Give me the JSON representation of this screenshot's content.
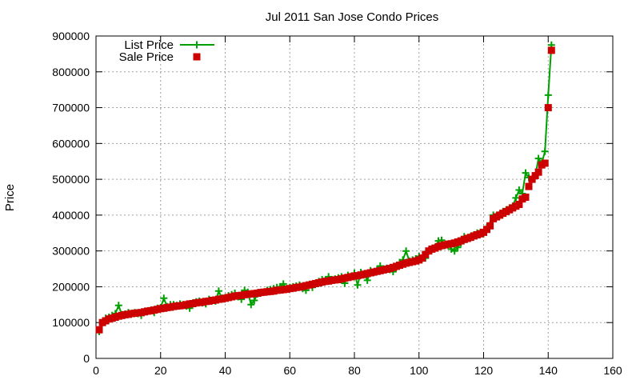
{
  "chart_data": {
    "type": "line",
    "title": "Jul 2011 San Jose Condo Prices",
    "xlabel": "",
    "ylabel": "Price",
    "xlim": [
      0,
      160
    ],
    "ylim": [
      0,
      900000
    ],
    "x_ticks": [
      0,
      20,
      40,
      60,
      80,
      100,
      120,
      140,
      160
    ],
    "y_ticks": [
      0,
      100000,
      200000,
      300000,
      400000,
      500000,
      600000,
      700000,
      800000,
      900000
    ],
    "grid": true,
    "legend_position": "top-left",
    "x": [
      1,
      2,
      3,
      4,
      5,
      6,
      7,
      8,
      9,
      10,
      11,
      12,
      13,
      14,
      15,
      16,
      17,
      18,
      19,
      20,
      21,
      22,
      23,
      24,
      25,
      26,
      27,
      28,
      29,
      30,
      31,
      32,
      33,
      34,
      35,
      36,
      37,
      38,
      39,
      40,
      41,
      42,
      43,
      44,
      45,
      46,
      47,
      48,
      49,
      50,
      51,
      52,
      53,
      54,
      55,
      56,
      57,
      58,
      59,
      60,
      61,
      62,
      63,
      64,
      65,
      66,
      67,
      68,
      69,
      70,
      71,
      72,
      73,
      74,
      75,
      76,
      77,
      78,
      79,
      80,
      81,
      82,
      83,
      84,
      85,
      86,
      87,
      88,
      89,
      90,
      91,
      92,
      93,
      94,
      95,
      96,
      97,
      98,
      99,
      100,
      101,
      102,
      103,
      104,
      105,
      106,
      107,
      108,
      109,
      110,
      111,
      112,
      113,
      114,
      115,
      116,
      117,
      118,
      119,
      120,
      121,
      122,
      123,
      124,
      125,
      126,
      127,
      128,
      129,
      130,
      131,
      132,
      133,
      134,
      135,
      136,
      137,
      138,
      139,
      140,
      141
    ],
    "series": [
      {
        "name": "List Price",
        "color": "#00a000",
        "marker": "plus",
        "values": [
          75000,
          100000,
          112000,
          115000,
          120000,
          125000,
          148000,
          122000,
          124000,
          128000,
          125000,
          128000,
          125000,
          120000,
          130000,
          132000,
          135000,
          128000,
          140000,
          142000,
          168000,
          145000,
          150000,
          150000,
          148000,
          152000,
          150000,
          146000,
          140000,
          155000,
          158000,
          160000,
          155000,
          152000,
          165000,
          162000,
          160000,
          188000,
          168000,
          170000,
          175000,
          178000,
          182000,
          172000,
          165000,
          190000,
          185000,
          150000,
          162000,
          180000,
          182000,
          185000,
          190000,
          192000,
          195000,
          198000,
          200000,
          208000,
          195000,
          198000,
          200000,
          202000,
          205000,
          195000,
          190000,
          205000,
          198000,
          210000,
          215000,
          220000,
          218000,
          228000,
          220000,
          222000,
          225000,
          228000,
          210000,
          232000,
          228000,
          238000,
          205000,
          240000,
          235000,
          218000,
          245000,
          240000,
          248000,
          258000,
          250000,
          252000,
          248000,
          242000,
          255000,
          268000,
          275000,
          300000,
          272000,
          275000,
          278000,
          285000,
          280000,
          280000,
          300000,
          305000,
          310000,
          328000,
          330000,
          315000,
          318000,
          305000,
          300000,
          310000,
          322000,
          340000,
          335000,
          340000,
          345000,
          350000,
          352000,
          348000,
          365000,
          375000,
          400000,
          398000,
          402000,
          410000,
          415000,
          420000,
          425000,
          448000,
          470000,
          460000,
          518000,
          505000,
          500000,
          510000,
          558000,
          545000,
          578000,
          735000,
          875000
        ]
      },
      {
        "name": "Sale Price",
        "color": "#cc0000",
        "marker": "square",
        "values": [
          80000,
          100000,
          105000,
          110000,
          112000,
          115000,
          118000,
          120000,
          122000,
          123000,
          125000,
          126000,
          127000,
          128000,
          130000,
          132000,
          133000,
          135000,
          137000,
          139000,
          140000,
          142000,
          143000,
          145000,
          146000,
          147000,
          148000,
          150000,
          152000,
          153000,
          155000,
          156000,
          157000,
          159000,
          160000,
          162000,
          163000,
          165000,
          166000,
          168000,
          170000,
          172000,
          174000,
          175000,
          176000,
          178000,
          179000,
          180000,
          181000,
          182000,
          184000,
          185000,
          186000,
          187000,
          188000,
          190000,
          191000,
          192000,
          193000,
          195000,
          196000,
          198000,
          199000,
          201000,
          203000,
          205000,
          207000,
          209000,
          211000,
          213000,
          215000,
          216000,
          218000,
          219000,
          220000,
          222000,
          224000,
          226000,
          228000,
          230000,
          231000,
          233000,
          235000,
          237000,
          239000,
          241000,
          243000,
          245000,
          247000,
          249000,
          251000,
          254000,
          257000,
          260000,
          263000,
          266000,
          268000,
          270000,
          272000,
          275000,
          280000,
          290000,
          300000,
          305000,
          308000,
          312000,
          315000,
          317000,
          319000,
          320000,
          322000,
          325000,
          328000,
          332000,
          335000,
          338000,
          342000,
          345000,
          348000,
          352000,
          360000,
          370000,
          390000,
          395000,
          400000,
          405000,
          410000,
          415000,
          420000,
          425000,
          430000,
          445000,
          450000,
          480000,
          500000,
          510000,
          520000,
          540000,
          545000,
          700000,
          860000
        ]
      }
    ]
  }
}
